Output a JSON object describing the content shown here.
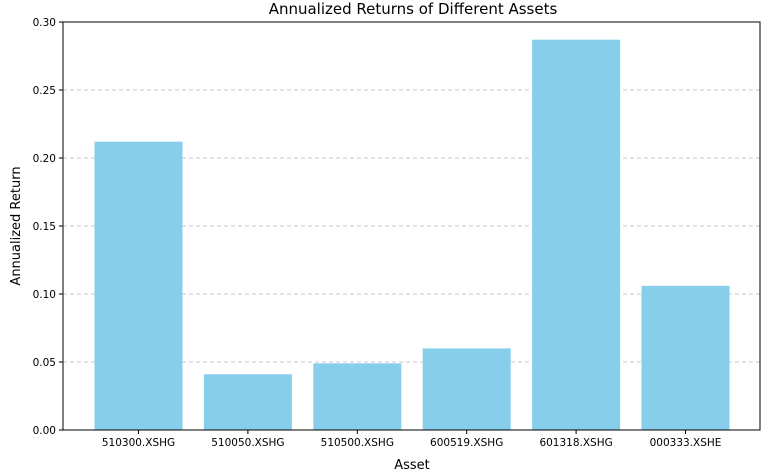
{
  "chart_data": {
    "type": "bar",
    "title": "Annualized Returns of Different Assets",
    "xlabel": "Asset",
    "ylabel": "Annualized Return",
    "categories": [
      "510300.XSHG",
      "510050.XSHG",
      "510500.XSHG",
      "600519.XSHG",
      "601318.XSHG",
      "000333.XSHE"
    ],
    "values": [
      0.212,
      0.041,
      0.049,
      0.06,
      0.287,
      0.106
    ],
    "ylim": [
      0,
      0.3
    ],
    "yticks": [
      "0.00",
      "0.05",
      "0.10",
      "0.15",
      "0.20",
      "0.25",
      "0.30"
    ],
    "grid": "y-dashed",
    "bar_color": "#87ceeb"
  }
}
